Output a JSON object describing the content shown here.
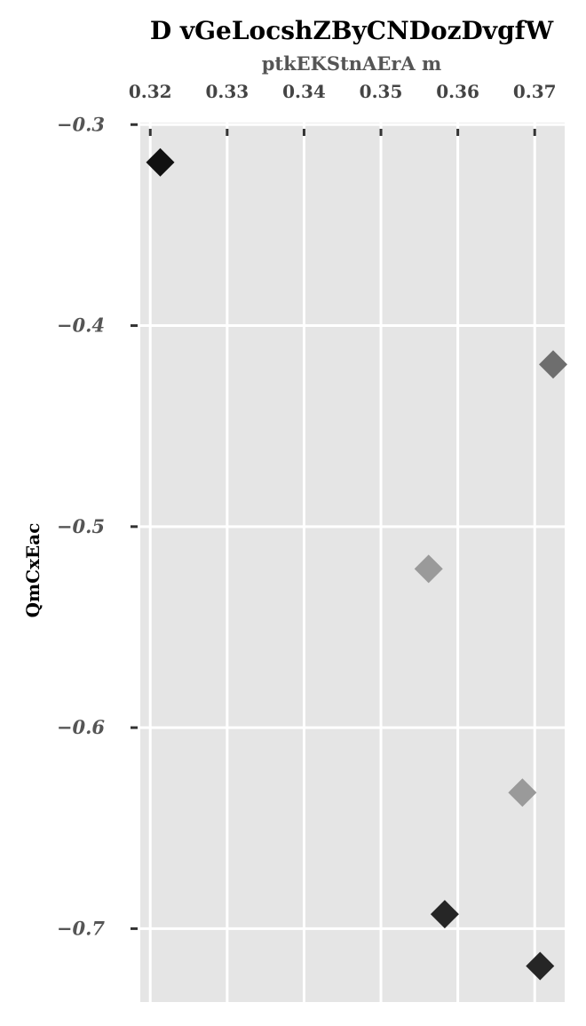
{
  "chart_data": {
    "type": "scatter",
    "title": "D vGeLocshZByCNDozDvgfW",
    "xlabel": "ptkEKStnAErA m",
    "ylabel": "QmCxEac",
    "xlim": [
      0.3187,
      0.3739
    ],
    "ylim": [
      -0.7365,
      -0.299
    ],
    "x_ticks": [
      0.32,
      0.33,
      0.34,
      0.35,
      0.36,
      0.37
    ],
    "x_tick_labels": [
      "0.32",
      "0.33",
      "0.34",
      "0.35",
      "0.36",
      "0.37"
    ],
    "y_ticks": [
      -0.3,
      -0.4,
      -0.5,
      -0.6,
      -0.7
    ],
    "y_tick_labels": [
      "−0.3",
      "−0.4",
      "−0.5",
      "−0.6",
      "−0.7"
    ],
    "x_axis_position": "top",
    "grid": true,
    "legend": "none",
    "marker": "diamond",
    "background_color": "#e5e5e5",
    "points": [
      {
        "x": 0.3213,
        "y": -0.3188,
        "color": "#111111"
      },
      {
        "x": 0.3724,
        "y": -0.4193,
        "color": "#6e6e6e"
      },
      {
        "x": 0.3562,
        "y": -0.521,
        "color": "#9a9a9a"
      },
      {
        "x": 0.3684,
        "y": -0.6323,
        "color": "#9a9a9a"
      },
      {
        "x": 0.3583,
        "y": -0.6928,
        "color": "#262626"
      },
      {
        "x": 0.3707,
        "y": -0.7186,
        "color": "#262626"
      }
    ]
  }
}
